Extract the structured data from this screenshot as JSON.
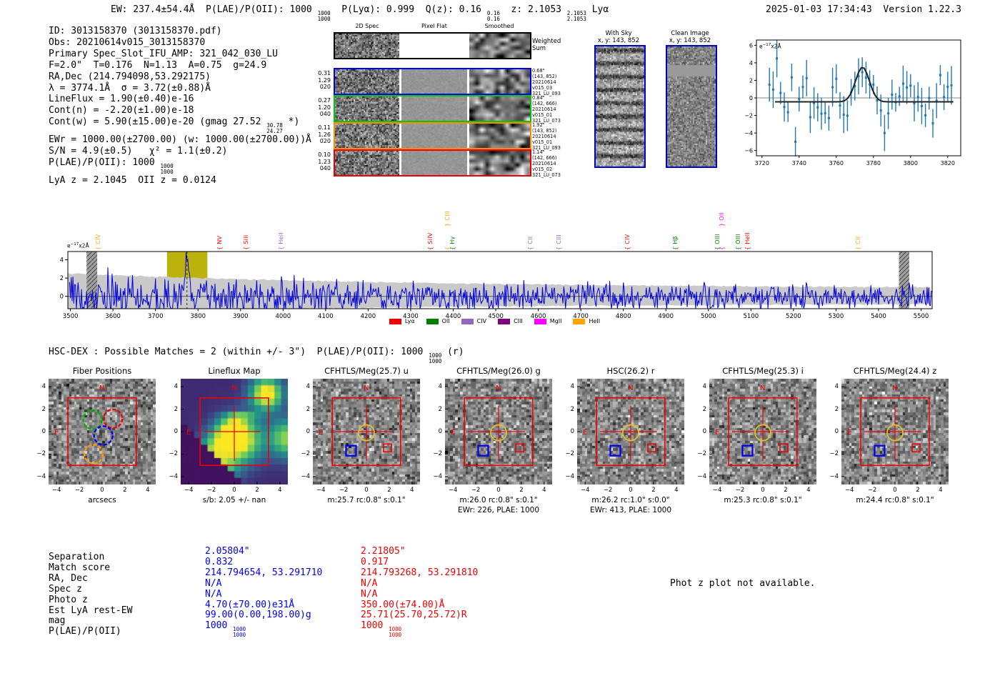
{
  "meta": {
    "datetime": "2025-01-03 17:34:43",
    "version": "Version 1.22.3"
  },
  "header": {
    "ew": "EW: 237.4±54.4Å",
    "plae_label": "P(LAE)/P(OII):",
    "plae_value": "1000",
    "plae_hi": "1000",
    "plae_lo": "1000",
    "plya": "P(Lyα): 0.999",
    "qz_label": "Q(z):",
    "qz_value": "0.16",
    "qz_hi": "0.16",
    "qz_lo": "0.16",
    "z_label": "z:",
    "z_value": "2.1053",
    "z_hi": "2.1053",
    "z_lo": "2.1053",
    "line_id": "Lyα"
  },
  "info_lines": [
    {
      "text": "ID: 3013158370 (3013158370.pdf)"
    },
    {
      "text": "Obs: 20210614v015_3013158370"
    },
    {
      "text": "Primary Spec_Slot_IFU_AMP: 321_042_030_LU"
    },
    {
      "text": "F=2.0\"  T=0.176  N=1.13  A=0.75  g=24.9"
    },
    {
      "text": "RA,Dec (214.794098,53.292175)"
    },
    {
      "text": "λ = 3774.1Å  σ = 3.72(±0.88)Å"
    },
    {
      "text": "LineFlux = 1.90(±0.40)e-16"
    },
    {
      "text": "Cont(n) = -2.20(±1.00)e-18"
    },
    {
      "text": "Cont(w) = 5.90(±15.00)e-20 (gmag 27.52 ",
      "hi": "30.78",
      "lo": "24.27",
      "post": " *)"
    },
    {
      "text": "EWr = 1000.00(±2700.00) (w: 1000.00(±2700.00))Å"
    },
    {
      "text": "S/N = 4.9(±0.5)   χ² = 1.1(±0.2)"
    },
    {
      "text": "P(LAE)/P(OII): 1000 ",
      "hi": "1000",
      "lo": "1000",
      "post": ""
    },
    {
      "text": "LyA z = 2.1045  OII z = 0.0124"
    }
  ],
  "spec2d": {
    "col_titles": [
      "2D Spec",
      "Pixel Flat",
      "Smoothed"
    ],
    "rows": [
      {
        "border": "#000000",
        "left": [],
        "right": [
          "Weighted",
          "Sum"
        ]
      },
      {
        "border": "#0000ee",
        "left": [
          "0.31",
          "1.29",
          "020"
        ],
        "right": [
          "0.68\"",
          "(143, 852)",
          "20210614",
          "v015_03",
          "321_LU_093"
        ]
      },
      {
        "border": "#00c800",
        "left": [
          "0.27",
          "1.20",
          "040"
        ],
        "right": [
          "0.84\"",
          "(142, 666)",
          "20210614",
          "v015_01",
          "321_LU_073"
        ]
      },
      {
        "border": "#ff8c00",
        "left": [
          "0.11",
          "1.26",
          "020"
        ],
        "right": [
          "1.92\"",
          "(143, 852)",
          "20210614",
          "v015_01",
          "321_LU_093"
        ]
      },
      {
        "border": "#ee0000",
        "left": [
          "0.10",
          "1.23",
          "040"
        ],
        "right": [
          "1.14\"",
          "(142, 666)",
          "20210614",
          "v015_02",
          "321_LU_073"
        ]
      }
    ]
  },
  "sky_panels": [
    {
      "title": "With Sky",
      "coords": "x, y: 143, 852"
    },
    {
      "title": "Clean Image",
      "coords": "x, y: 143, 852"
    }
  ],
  "hsc": {
    "text": "HSC-DEX : Possible Matches = 2 (within +/- 3\")  P(LAE)/P(OII): 1000 ",
    "hi": "1000",
    "lo": "1000",
    "post": " (r)"
  },
  "chart_data": [
    {
      "id": "line_fit_inset",
      "type": "scatter",
      "annotation": "e-17 x2Å",
      "xlim": [
        3717,
        3827
      ],
      "ylim": [
        -6.6,
        6.6
      ],
      "x_ticks": [
        3720,
        3740,
        3760,
        3780,
        3800,
        3820
      ],
      "y_ticks": [
        -6,
        -4,
        -2,
        0,
        2,
        4,
        6
      ],
      "marker_color": "#1f77b4",
      "fit_color": "#222222",
      "gaussian_fit": {
        "center": 3774.1,
        "sigma": 3.72,
        "amplitude": 3.95,
        "baseline": -0.45
      },
      "sampling": {
        "x_start": 3724,
        "x_step": 2,
        "n_points": 50,
        "scatter_sigma": 1.55,
        "typical_error_bar": 1.7
      },
      "notable_points": {
        "3728": 4.5,
        "3738": -5.0,
        "3752": -1.8,
        "3756": -2.3,
        "3812": -2.9,
        "3816": 2.6,
        "3820": 1.25
      }
    },
    {
      "id": "full_spectrum",
      "type": "line",
      "annotation": "e-17 x2Å",
      "xlim": [
        3494,
        5526
      ],
      "ylim": [
        -1.35,
        4.9
      ],
      "x_ticks": [
        3500,
        3600,
        3700,
        3800,
        3900,
        4000,
        4100,
        4200,
        4300,
        4400,
        4500,
        4600,
        4700,
        4800,
        4900,
        5000,
        5100,
        5200,
        5300,
        5400,
        5500
      ],
      "y_ticks": [
        0,
        2,
        4
      ],
      "line_color": "#0000dd",
      "error_band_color": "#c9c9c9",
      "detected_line": {
        "center": 3774.1,
        "sigma": 3.72,
        "peak": 4.4
      },
      "highlight_band": {
        "x0": 3727,
        "x1": 3822,
        "color": "#b9ae00"
      },
      "masked_bands": [
        {
          "x0": 3538,
          "x1": 3563
        },
        {
          "x0": 5448,
          "x1": 5472
        }
      ],
      "noise_sigma": {
        "at_3500": 1.45,
        "at_5500": 0.55
      },
      "line_markers": [
        {
          "label": "CIV",
          "wave": 3565,
          "color": "#ffa500"
        },
        {
          "label": "NV",
          "wave": 3850,
          "color": "#ee0000"
        },
        {
          "label": "SiII",
          "wave": 3912,
          "color": "#ee0000"
        },
        {
          "label": "HeII",
          "wave": 3995,
          "color": "#9467bd"
        },
        {
          "label": "SiIV",
          "wave": 4346,
          "color": "#ee0000"
        },
        {
          "label": "CIII",
          "wave": 4385,
          "color": "#ffa500",
          "raised": true
        },
        {
          "label": "Hγ",
          "wave": 4398,
          "color": "#007f00"
        },
        {
          "label": "CII",
          "wave": 4580,
          "color": "#9467bd"
        },
        {
          "label": "CIII",
          "wave": 4648,
          "color": "#9467bd"
        },
        {
          "label": "CIV",
          "wave": 4809,
          "color": "#ee0000"
        },
        {
          "label": "Hβ",
          "wave": 4921,
          "color": "#007f00"
        },
        {
          "label": "OIII",
          "wave": 5020,
          "color": "#007f00"
        },
        {
          "label": "OII",
          "wave": 5031,
          "color": "#ff00ff",
          "raised": true
        },
        {
          "label": "OIII",
          "wave": 5069,
          "color": "#007f00"
        },
        {
          "label": "HeII",
          "wave": 5091,
          "color": "#ee0000"
        },
        {
          "label": "CII",
          "wave": 5352,
          "color": "#ffa500"
        }
      ],
      "legend": [
        {
          "label": "Lyα",
          "color": "#ee0000"
        },
        {
          "label": "OII",
          "color": "#007f00"
        },
        {
          "label": "CIV",
          "color": "#9467bd"
        },
        {
          "label": "CIII",
          "color": "#7f007f"
        },
        {
          "label": "MgII",
          "color": "#ff00ff"
        },
        {
          "label": "HeII",
          "color": "#ffa500"
        }
      ]
    }
  ],
  "cutouts": {
    "arcsec_ticks": [
      -4,
      -2,
      0,
      2,
      4
    ],
    "panels": [
      {
        "title": "Fiber Positions",
        "xlabel": "arcsecs",
        "type": "fiber"
      },
      {
        "title": "Lineflux Map",
        "xlabel": "s/b: 2.05 +/- nan",
        "type": "lineflux"
      },
      {
        "title": "CFHTLS/Meg(25.7) u",
        "xlabel": "m:25.7 rc:0.8\"  s:0.1\"",
        "type": "image"
      },
      {
        "title": "CFHTLS/Meg(26.0) g",
        "xlabel": "m:26.0 rc:0.8\"  s:0.1\"",
        "extra": "EWr: 226, PLAE: 1000",
        "type": "image"
      },
      {
        "title": "HSC(26.2) r",
        "xlabel": "m:26.2 rc:1.0\"  s:0.0\"",
        "extra": "EWr: 413, PLAE: 1000",
        "type": "image"
      },
      {
        "title": "CFHTLS/Meg(25.3) i",
        "xlabel": "m:25.3 rc:0.8\"  s:0.1\"",
        "type": "image"
      },
      {
        "title": "CFHTLS/Meg(24.4) z",
        "xlabel": "m:24.4 rc:0.8\"  s:0.1\"",
        "type": "image"
      }
    ],
    "compass": {
      "north": "N",
      "east": "E"
    }
  },
  "match_table": {
    "labels": [
      "Separation",
      "Match score",
      "RA, Dec",
      "Spec z",
      "Photo z",
      "Est LyA rest-EW",
      "mag",
      "P(LAE)/P(OII)"
    ],
    "columns": [
      {
        "color": "#0000ee",
        "values": [
          "2.05804\"",
          "0.832",
          "214.794654, 53.291710",
          "N/A",
          "N/A",
          "4.70(±70.00)e31Å",
          "99.00(0.00,198.00)g"
        ],
        "plae": {
          "value": "1000",
          "hi": "1000",
          "lo": "1000"
        }
      },
      {
        "color": "#ee0000",
        "values": [
          "2.21805\"",
          "0.917",
          "214.793268, 53.291810",
          "N/A",
          "N/A",
          "350.00(±74.00)Å",
          "25.71(25.70,25.72)R"
        ],
        "plae": {
          "value": "1000",
          "hi": "1000",
          "lo": "1000"
        }
      }
    ]
  },
  "photz_note": "Phot z plot not available."
}
